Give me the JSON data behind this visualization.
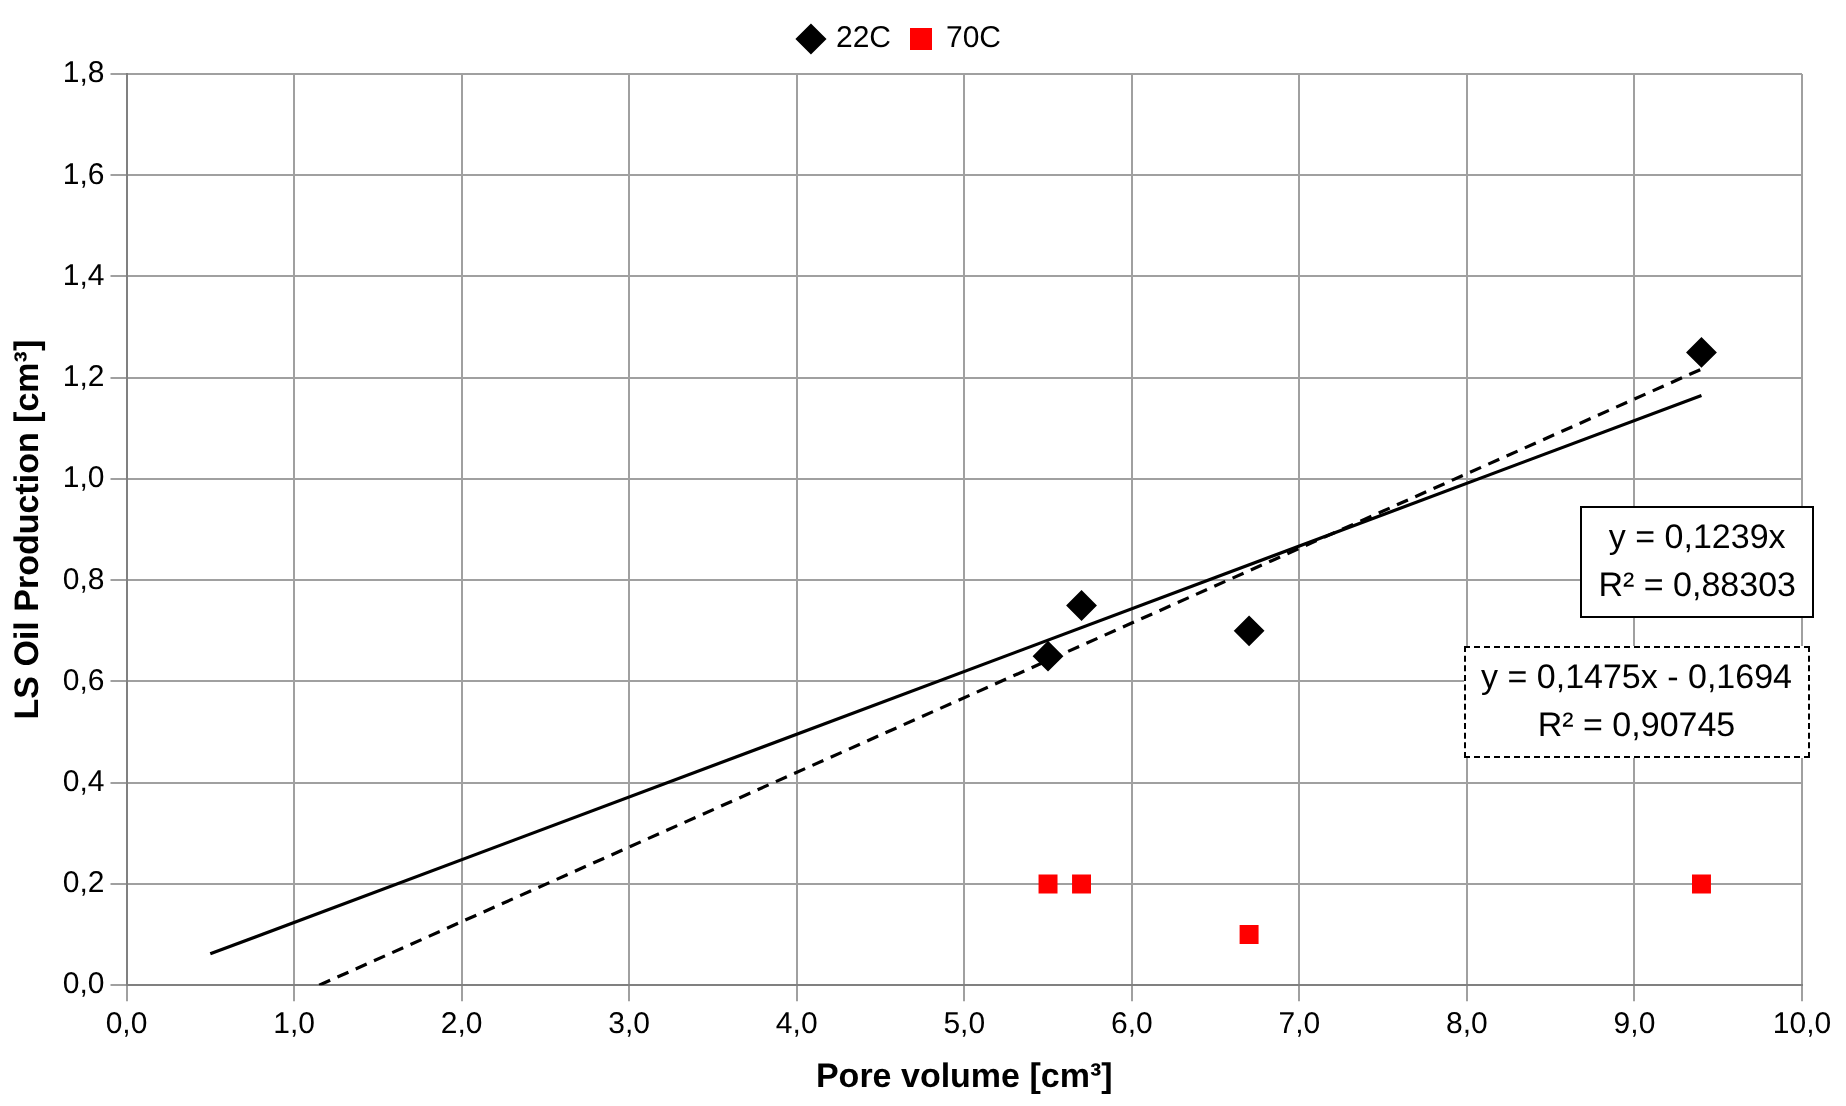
{
  "chart_data": {
    "type": "scatter",
    "xlabel": "Pore volume [cm³]",
    "ylabel": "LS Oil Production [cm³]",
    "xlim": [
      0,
      10
    ],
    "xticks": [
      {
        "value": 0,
        "label": "0,0"
      },
      {
        "value": 1,
        "label": "1,0"
      },
      {
        "value": 2,
        "label": "2,0"
      },
      {
        "value": 3,
        "label": "3,0"
      },
      {
        "value": 4,
        "label": "4,0"
      },
      {
        "value": 5,
        "label": "5,0"
      },
      {
        "value": 6,
        "label": "6,0"
      },
      {
        "value": 7,
        "label": "7,0"
      },
      {
        "value": 8,
        "label": "8,0"
      },
      {
        "value": 9,
        "label": "9,0"
      },
      {
        "value": 10,
        "label": "10,0"
      }
    ],
    "ylim": [
      0,
      1.8
    ],
    "yticks": [
      {
        "value": 0,
        "label": "0,0"
      },
      {
        "value": 0.2,
        "label": "0,2"
      },
      {
        "value": 0.4,
        "label": "0,4"
      },
      {
        "value": 0.6,
        "label": "0,6"
      },
      {
        "value": 0.8,
        "label": "0,8"
      },
      {
        "value": 1,
        "label": "1,0"
      },
      {
        "value": 1.2,
        "label": "1,2"
      },
      {
        "value": 1.4,
        "label": "1,4"
      },
      {
        "value": 1.6,
        "label": "1,6"
      },
      {
        "value": 1.8,
        "label": "1,8"
      }
    ],
    "grid": true,
    "legend": "top",
    "series": [
      {
        "name": "22C",
        "type": "scatter",
        "marker": "diamond",
        "color": "#000000",
        "x": [
          5.5,
          5.7,
          6.7,
          9.4
        ],
        "values": [
          0.65,
          0.75,
          0.7,
          1.25
        ]
      },
      {
        "name": "70C",
        "type": "scatter",
        "marker": "square",
        "color": "#ff0000",
        "x": [
          5.5,
          5.7,
          6.7,
          9.4
        ],
        "values": [
          0.2,
          0.2,
          0.1,
          0.2
        ]
      },
      {
        "type": "line",
        "marker": "none",
        "line_style": "solid",
        "color": "#000000",
        "x": [
          0.5,
          9.4
        ],
        "values": [
          0.062,
          1.165
        ]
      },
      {
        "type": "line",
        "marker": "none",
        "line_style": "dashed",
        "color": "#000000",
        "x": [
          1.15,
          9.4
        ],
        "values": [
          0,
          1.217
        ]
      }
    ],
    "annotations": [
      "y = 0,1239x",
      "R² = 0,88303",
      "y = 0,1475x - 0,1694",
      "R² = 0,90745"
    ]
  }
}
